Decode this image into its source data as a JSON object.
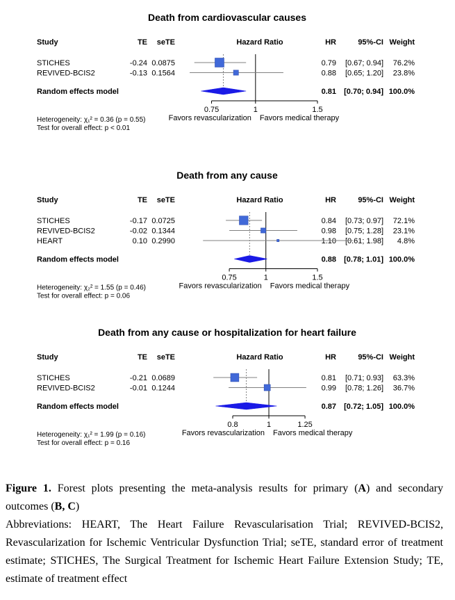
{
  "column_headers": {
    "study": "Study",
    "te": "TE",
    "sete": "seTE",
    "hazard_ratio": "Hazard Ratio",
    "hr": "HR",
    "ci": "95%-CI",
    "weight": "Weight"
  },
  "colors": {
    "square": "#4169d8",
    "square_edge": "#2f4fb3",
    "diamond": "#1a1ae6",
    "ci_line": "#808080",
    "ref_line": "#000000",
    "pooled_line": "#808080"
  },
  "chart_data": [
    {
      "type": "forest",
      "title": "Death from cardiovascular causes",
      "log_scale": true,
      "xlim": [
        0.68,
        1.5
      ],
      "ticks": [
        0.75,
        1,
        1.5
      ],
      "tick_labels": [
        "0.75",
        "1",
        "1.5"
      ],
      "studies": [
        {
          "name": "STICHES",
          "te": "-0.24",
          "sete": "0.0875",
          "hr": 0.79,
          "ci_low": 0.67,
          "ci_high": 0.94,
          "weight": 76.2,
          "hr_text": "0.79",
          "ci_text": "[0.67; 0.94]",
          "weight_text": "76.2%"
        },
        {
          "name": "REVIVED-BCIS2",
          "te": "-0.13",
          "sete": "0.1564",
          "hr": 0.88,
          "ci_low": 0.65,
          "ci_high": 1.2,
          "weight": 23.8,
          "hr_text": "0.88",
          "ci_text": "[0.65; 1.20]",
          "weight_text": "23.8%"
        }
      ],
      "pooled": {
        "label": "Random effects model",
        "hr": 0.81,
        "ci_low": 0.7,
        "ci_high": 0.94,
        "hr_text": "0.81",
        "ci_text": "[0.70; 0.94]",
        "weight_text": "100.0%"
      },
      "heterogeneity": "Heterogeneity: χ₁² = 0.36 (p = 0.55)",
      "overall_effect": "Test for overall effect:  p < 0.01",
      "favors_left": "Favors revascularization",
      "favors_right": "Favors medical therapy"
    },
    {
      "type": "forest",
      "title": "Death from any cause",
      "log_scale": true,
      "xlim": [
        0.58,
        1.5
      ],
      "ticks": [
        0.75,
        1,
        1.5
      ],
      "tick_labels": [
        "0.75",
        "1",
        "1.5"
      ],
      "studies": [
        {
          "name": "STICHES",
          "te": "-0.17",
          "sete": "0.0725",
          "hr": 0.84,
          "ci_low": 0.73,
          "ci_high": 0.97,
          "weight": 72.1,
          "hr_text": "0.84",
          "ci_text": "[0.73; 0.97]",
          "weight_text": "72.1%"
        },
        {
          "name": "REVIVED-BCIS2",
          "te": "-0.02",
          "sete": "0.1344",
          "hr": 0.98,
          "ci_low": 0.75,
          "ci_high": 1.28,
          "weight": 23.1,
          "hr_text": "0.98",
          "ci_text": "[0.75; 1.28]",
          "weight_text": "23.1%"
        },
        {
          "name": "HEART",
          "te": "0.10",
          "sete": "0.2990",
          "hr": 1.1,
          "ci_low": 0.61,
          "ci_high": 1.98,
          "weight": 4.8,
          "hr_text": "1.10",
          "ci_text": "[0.61; 1.98]",
          "weight_text": "4.8%"
        }
      ],
      "pooled": {
        "label": "Random effects model",
        "hr": 0.88,
        "ci_low": 0.78,
        "ci_high": 1.01,
        "hr_text": "0.88",
        "ci_text": "[0.78; 1.01]",
        "weight_text": "100.0%"
      },
      "heterogeneity": "Heterogeneity: χ₂² = 1.55 (p = 0.46)",
      "overall_effect": "Test for overall effect:  p = 0.06",
      "favors_left": "Favors revascularization",
      "favors_right": "Favors medical therapy"
    },
    {
      "type": "forest",
      "title": "Death from any cause or hospitalization for heart failure",
      "log_scale": true,
      "xlim": [
        0.64,
        1.35
      ],
      "ticks": [
        0.8,
        1,
        1.25
      ],
      "tick_labels": [
        "0.8",
        "1",
        "1.25"
      ],
      "studies": [
        {
          "name": "STICHES",
          "te": "-0.21",
          "sete": "0.0689",
          "hr": 0.81,
          "ci_low": 0.71,
          "ci_high": 0.93,
          "weight": 63.3,
          "hr_text": "0.81",
          "ci_text": "[0.71; 0.93]",
          "weight_text": "63.3%"
        },
        {
          "name": "REVIVED-BCIS2",
          "te": "-0.01",
          "sete": "0.1244",
          "hr": 0.99,
          "ci_low": 0.78,
          "ci_high": 1.26,
          "weight": 36.7,
          "hr_text": "0.99",
          "ci_text": "[0.78; 1.26]",
          "weight_text": "36.7%"
        }
      ],
      "pooled": {
        "label": "Random effects model",
        "hr": 0.87,
        "ci_low": 0.72,
        "ci_high": 1.05,
        "hr_text": "0.87",
        "ci_text": "[0.72; 1.05]",
        "weight_text": "100.0%"
      },
      "heterogeneity": "Heterogeneity: χ₁² = 1.99 (p = 0.16)",
      "overall_effect": "Test for overall effect:  p = 0.16",
      "favors_left": "Favors revascularization",
      "favors_right": "Favors medical therapy"
    }
  ],
  "caption": {
    "label": "Figure 1.",
    "text_1": " Forest plots presenting the meta-analysis results for primary (",
    "bold_a": "A",
    "text_2": ") and secondary outcomes (",
    "bold_bc": "B, C",
    "text_3": ")",
    "abbreviations": "Abbreviations: HEART, The Heart Failure Revascularisation Trial; REVIVED-BCIS2, Revascularization for Ischemic Ventricular Dysfunction Trial; seTE, standard error of treatment estimate; STICHES, The Surgical Treatment for Ischemic Heart Failure Extension Study; TE, estimate of treatment effect"
  }
}
